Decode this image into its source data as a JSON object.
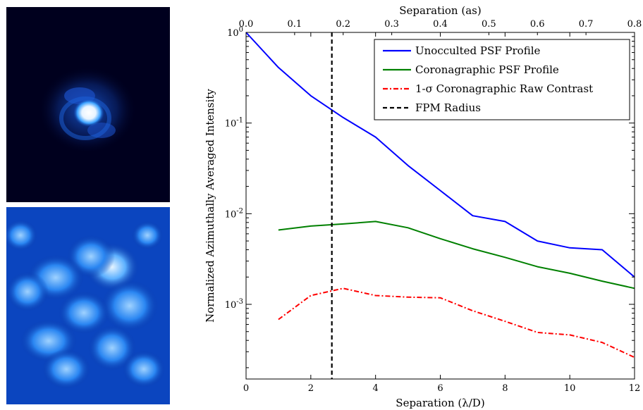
{
  "images": {
    "top": {
      "colors": {
        "background": "#00001e",
        "ring": "#1a5ad8",
        "core": "#ffffff"
      }
    },
    "bottom": {
      "colors": {
        "background": "#0a3aa8",
        "mid": "#1c7cf0",
        "bright": "#cfe8ff"
      }
    }
  },
  "chart_data": {
    "type": "line",
    "xlabel": "Separation (λ/D)",
    "x2label": "Separation (as)",
    "ylabel": "Normalized Azimuthally Averaged Intensity",
    "xlim": [
      0,
      12
    ],
    "ylim": [
      0.00015,
      1
    ],
    "yscale": "log",
    "x2lim": [
      0,
      0.8
    ],
    "x_ticks": [
      0,
      2,
      4,
      6,
      8,
      10,
      12
    ],
    "x2_ticks": [
      "0.0",
      "0.1",
      "0.2",
      "0.3",
      "0.4",
      "0.5",
      "0.6",
      "0.7",
      "0.8"
    ],
    "y_tick_labels": [
      {
        "value": 1,
        "base": "10",
        "exp": "0"
      },
      {
        "value": 0.1,
        "base": "10",
        "exp": "-1"
      },
      {
        "value": 0.01,
        "base": "10",
        "exp": "-2"
      },
      {
        "value": 0.001,
        "base": "10",
        "exp": "-3"
      }
    ],
    "grid": false,
    "legend_position": "top-right",
    "series": [
      {
        "name": "Unocculted PSF Profile",
        "color": "#0000ff",
        "style": "solid",
        "points": [
          [
            0,
            1.0
          ],
          [
            1,
            0.41
          ],
          [
            2,
            0.2
          ],
          [
            3,
            0.115
          ],
          [
            4,
            0.07
          ],
          [
            5,
            0.034
          ],
          [
            6,
            0.018
          ],
          [
            7,
            0.0095
          ],
          [
            8,
            0.0082
          ],
          [
            9,
            0.005
          ],
          [
            10,
            0.0042
          ],
          [
            11,
            0.004
          ],
          [
            12,
            0.002
          ]
        ]
      },
      {
        "name": "Coronagraphic PSF Profile",
        "color": "#008000",
        "style": "solid",
        "points": [
          [
            1,
            0.0066
          ],
          [
            2,
            0.0073
          ],
          [
            3,
            0.0077
          ],
          [
            4,
            0.0082
          ],
          [
            5,
            0.007
          ],
          [
            6,
            0.0053
          ],
          [
            7,
            0.0041
          ],
          [
            8,
            0.0033
          ],
          [
            9,
            0.0026
          ],
          [
            10,
            0.0022
          ],
          [
            11,
            0.0018
          ],
          [
            12,
            0.0015
          ]
        ]
      },
      {
        "name": "1-σ Coronagraphic Raw Contrast",
        "color": "#ff0000",
        "style": "dashdot",
        "points": [
          [
            1,
            0.00068
          ],
          [
            2,
            0.00125
          ],
          [
            3,
            0.0015
          ],
          [
            4,
            0.00125
          ],
          [
            5,
            0.0012
          ],
          [
            6,
            0.00118
          ],
          [
            7,
            0.00085
          ],
          [
            8,
            0.00065
          ],
          [
            9,
            0.00049
          ],
          [
            10,
            0.00046
          ],
          [
            11,
            0.00038
          ],
          [
            12,
            0.00026
          ]
        ]
      },
      {
        "name": "FPM Radius",
        "color": "#000000",
        "style": "dashed",
        "vline_x": 2.65
      }
    ]
  }
}
